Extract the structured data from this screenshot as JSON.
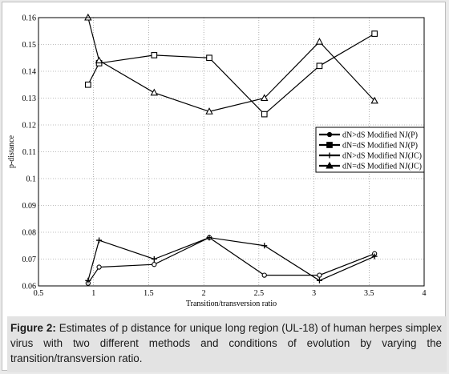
{
  "chart_data": {
    "type": "line",
    "xlabel": "Transition/transversion ratio",
    "ylabel": "p-distance",
    "xlim": [
      0.5,
      4
    ],
    "ylim": [
      0.06,
      0.16
    ],
    "x_ticks": [
      "0.5",
      "1",
      "1.5",
      "2",
      "2.5",
      "3",
      "3.5",
      "4"
    ],
    "y_ticks": [
      "0.06",
      "0.07",
      "0.08",
      "0.09",
      "0.1",
      "0.11",
      "0.12",
      "0.13",
      "0.14",
      "0.15",
      "0.16"
    ],
    "grid": true,
    "legend_position": "right",
    "series": [
      {
        "name": "dN>dS Modified NJ(P)",
        "marker": "circle",
        "x": [
          0.95,
          1.05,
          1.55,
          2.05,
          2.55,
          3.05,
          3.55
        ],
        "y": [
          0.061,
          0.067,
          0.068,
          0.078,
          0.064,
          0.064,
          0.072
        ]
      },
      {
        "name": "dN=dS Modified NJ(P)",
        "marker": "square",
        "x": [
          0.95,
          1.05,
          1.55,
          2.05,
          2.55,
          3.05,
          3.55
        ],
        "y": [
          0.135,
          0.143,
          0.146,
          0.145,
          0.124,
          0.142,
          0.154
        ]
      },
      {
        "name": "dN>dS Modified NJ(JC)",
        "marker": "plus",
        "x": [
          0.95,
          1.05,
          1.55,
          2.05,
          2.55,
          3.05,
          3.55
        ],
        "y": [
          0.062,
          0.077,
          0.07,
          0.078,
          0.075,
          0.062,
          0.071
        ]
      },
      {
        "name": "dN=dS Modified NJ(JC)",
        "marker": "triangle",
        "x": [
          0.95,
          1.05,
          1.55,
          2.05,
          2.55,
          3.05,
          3.55
        ],
        "y": [
          0.16,
          0.144,
          0.132,
          0.125,
          0.13,
          0.151,
          0.129
        ]
      }
    ]
  },
  "caption": {
    "label": "Figure 2:",
    "text": "Estimates of p distance for unique long region (UL-18) of human herpes simplex virus with two different methods and conditions of evolution by varying the transition/transversion ratio."
  }
}
